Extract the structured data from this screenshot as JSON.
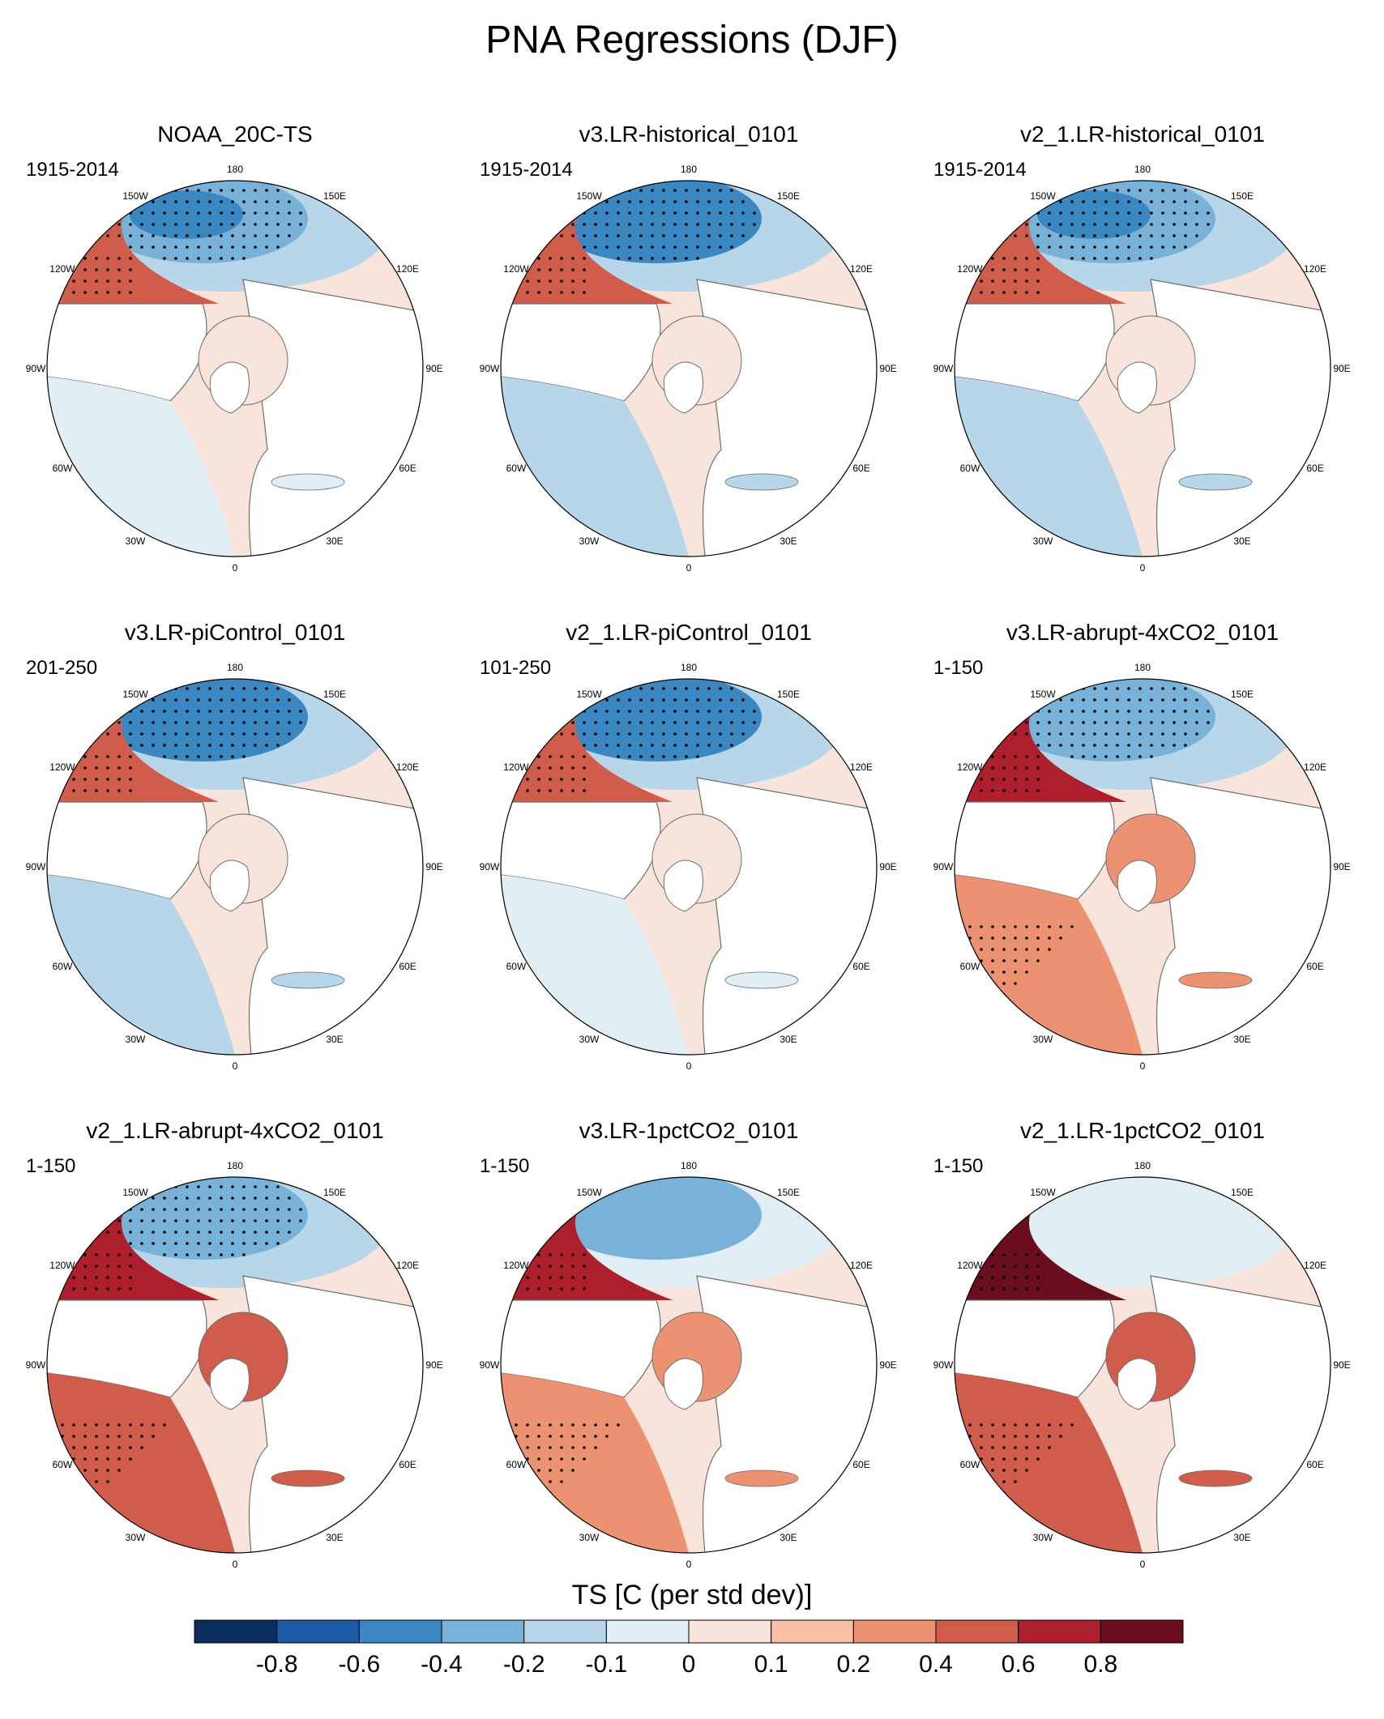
{
  "title": "PNA Regressions (DJF)",
  "colors": {
    "levels": [
      "#0b2e5c",
      "#1c5aa3",
      "#3b87c2",
      "#78b2d8",
      "#b7d6ea",
      "#e2eef5",
      "#f8e4da",
      "#f6c1a6",
      "#ec9273",
      "#d05c4c",
      "#ad1f2c",
      "#6a0d1f"
    ],
    "land": "#ffffff",
    "coast": "#6e6e6e"
  },
  "panels": [
    {
      "title": "NOAA_20C-TS",
      "years": "1915-2014"
    },
    {
      "title": "v3.LR-historical_0101",
      "years": "1915-2014"
    },
    {
      "title": "v2_1.LR-historical_0101",
      "years": "1915-2014"
    },
    {
      "title": "v3.LR-piControl_0101",
      "years": "201-250"
    },
    {
      "title": "v2_1.LR-piControl_0101",
      "years": "101-250"
    },
    {
      "title": "v3.LR-abrupt-4xCO2_0101",
      "years": "1-150"
    },
    {
      "title": "v2_1.LR-abrupt-4xCO2_0101",
      "years": "1-150"
    },
    {
      "title": "v3.LR-1pctCO2_0101",
      "years": "1-150"
    },
    {
      "title": "v2_1.LR-1pctCO2_0101",
      "years": "1-150"
    }
  ],
  "map_labels": [
    "180",
    "150W",
    "150E",
    "120W",
    "120E",
    "90W",
    "90E",
    "60W",
    "60E",
    "30W",
    "30E",
    "0"
  ],
  "chart_data": {
    "type": "heatmap",
    "projection": "north-polar-stereographic",
    "variable": "TS",
    "colorbar": {
      "title": "TS [C (per std dev)]",
      "tick_labels": [
        "-0.8",
        "-0.6",
        "-0.4",
        "-0.2",
        "-0.1",
        "0",
        "0.1",
        "0.2",
        "0.4",
        "0.6",
        "0.8"
      ],
      "boundaries": [
        -0.8,
        -0.6,
        -0.4,
        -0.2,
        -0.1,
        0,
        0.1,
        0.2,
        0.4,
        0.6,
        0.8
      ],
      "extend": "both"
    },
    "panels": [
      {
        "name": "NOAA_20C-TS",
        "north_pacific_anomaly": -0.5,
        "na_west_coast_anomaly": 0.4,
        "arctic_anomaly": 0.05,
        "atlantic_anomaly": -0.1
      },
      {
        "name": "v3.LR-historical_0101",
        "north_pacific_anomaly": -0.6,
        "na_west_coast_anomaly": 0.5,
        "arctic_anomaly": 0.05,
        "atlantic_anomaly": -0.2
      },
      {
        "name": "v2_1.LR-historical_0101",
        "north_pacific_anomaly": -0.5,
        "na_west_coast_anomaly": 0.5,
        "arctic_anomaly": 0.05,
        "atlantic_anomaly": -0.2
      },
      {
        "name": "v3.LR-piControl_0101",
        "north_pacific_anomaly": -0.6,
        "na_west_coast_anomaly": 0.5,
        "arctic_anomaly": 0.05,
        "atlantic_anomaly": -0.2
      },
      {
        "name": "v2_1.LR-piControl_0101",
        "north_pacific_anomaly": -0.6,
        "na_west_coast_anomaly": 0.5,
        "arctic_anomaly": 0.05,
        "atlantic_anomaly": -0.1
      },
      {
        "name": "v3.LR-abrupt-4xCO2_0101",
        "north_pacific_anomaly": -0.4,
        "na_west_coast_anomaly": 0.6,
        "arctic_anomaly": 0.2,
        "atlantic_anomaly": 0.3
      },
      {
        "name": "v2_1.LR-abrupt-4xCO2_0101",
        "north_pacific_anomaly": -0.4,
        "na_west_coast_anomaly": 0.7,
        "arctic_anomaly": 0.4,
        "atlantic_anomaly": 0.4
      },
      {
        "name": "v3.LR-1pctCO2_0101",
        "north_pacific_anomaly": -0.3,
        "na_west_coast_anomaly": 0.7,
        "arctic_anomaly": 0.2,
        "atlantic_anomaly": 0.3
      },
      {
        "name": "v2_1.LR-1pctCO2_0101",
        "north_pacific_anomaly": -0.1,
        "na_west_coast_anomaly": 0.8,
        "arctic_anomaly": 0.4,
        "atlantic_anomaly": 0.5
      }
    ]
  }
}
